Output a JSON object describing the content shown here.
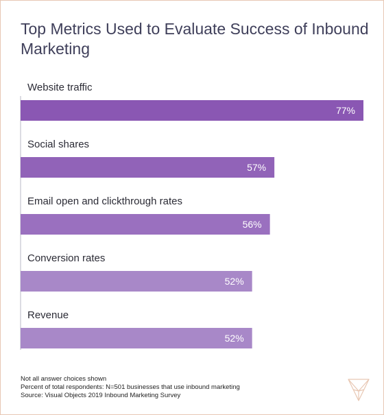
{
  "title": "Top Metrics Used to Evaluate Success of Inbound Marketing",
  "chart_data": {
    "type": "bar",
    "orientation": "horizontal",
    "categories": [
      "Website traffic",
      "Social shares",
      "Email open and clickthrough rates",
      "Conversion rates",
      "Revenue"
    ],
    "values": [
      77,
      57,
      56,
      52,
      52
    ],
    "value_labels": [
      "77%",
      "57%",
      "56%",
      "52%",
      "52%"
    ],
    "unit": "%",
    "xlim": [
      0,
      77
    ],
    "grid": false,
    "legend": "none",
    "bar_colors": [
      "#8a57b3",
      "#9163b8",
      "#9a70bf",
      "#a888c8",
      "#a888c8"
    ]
  },
  "notes": [
    "Not all answer choices shown",
    "Percent of total respondents: N=501 businesses that use inbound marketing",
    "Source: Visual Objects 2019 Inbound Marketing Survey"
  ],
  "colors": {
    "title": "#3f3f5a",
    "axis": "#b8b8c4",
    "frame_border": "#e8c7b3",
    "logo": "#e8c7b3"
  },
  "logo_icon": "visual-objects-v-logo-icon"
}
